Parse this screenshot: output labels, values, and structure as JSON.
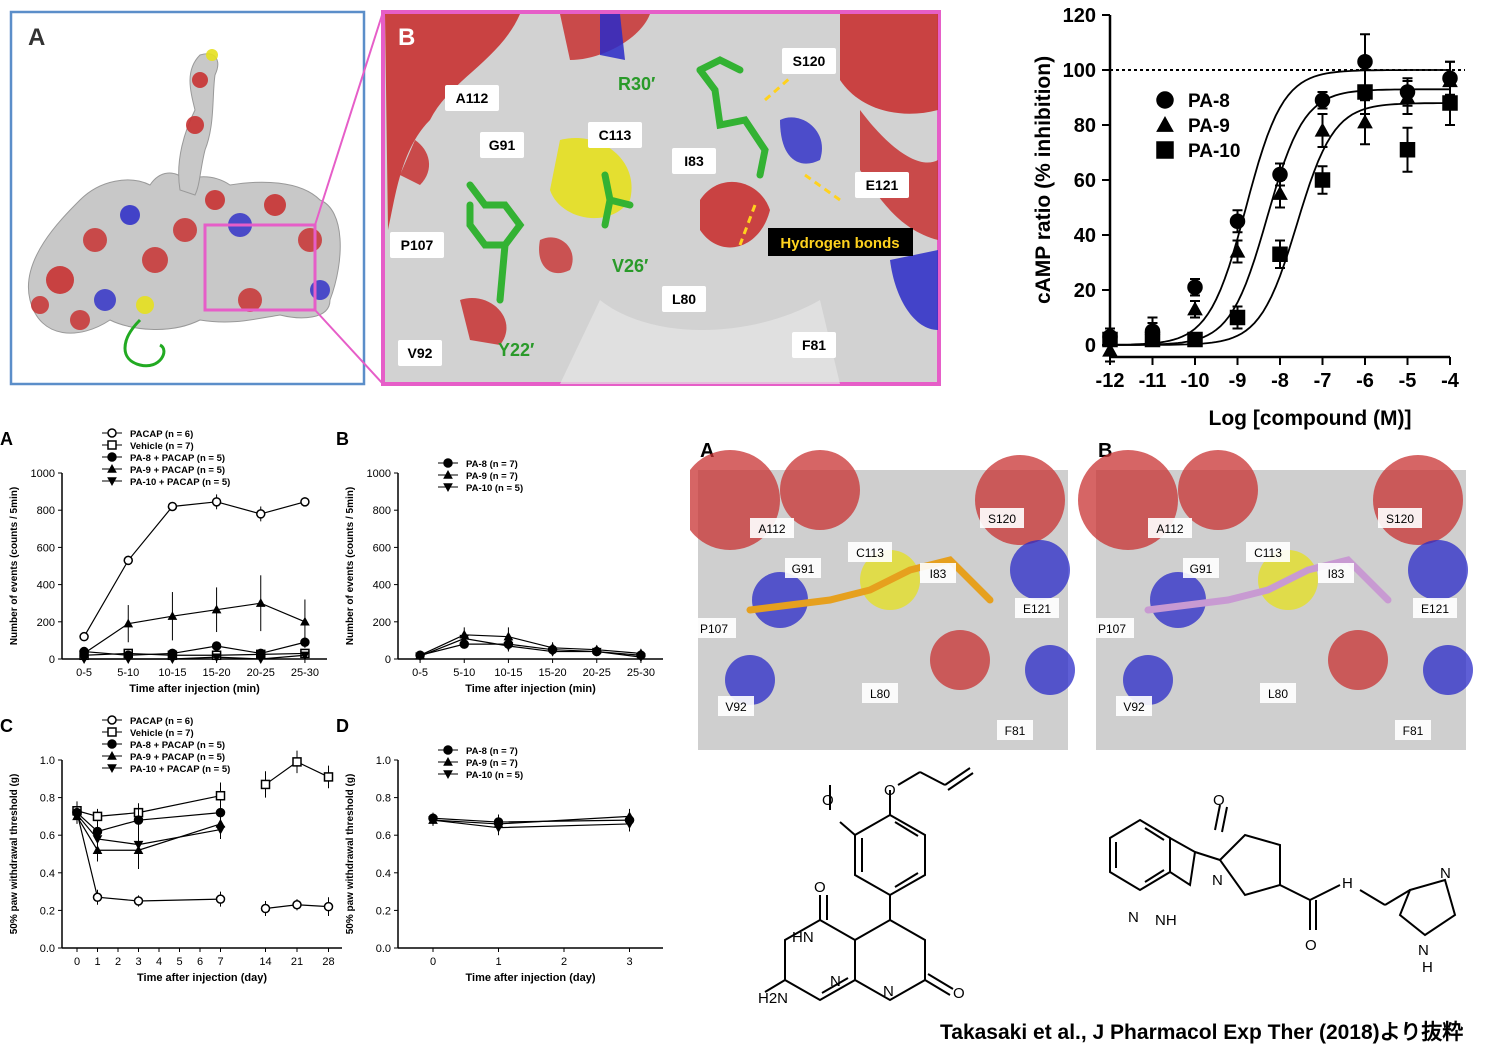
{
  "top_left": {
    "panel_a": {
      "letter": "A"
    },
    "panel_b": {
      "letter": "B",
      "residues": [
        "A112",
        "G91",
        "C113",
        "I83",
        "S120",
        "E121",
        "P107",
        "V92",
        "L80",
        "F81"
      ],
      "ligand_residues": [
        "R30′",
        "V26′",
        "Y22′"
      ],
      "hbond_label": "Hydrogen bonds"
    }
  },
  "camp_chart": {
    "ylabel": "cAMP ratio (% inhibition)",
    "xlabel": "Log [compound (M)]",
    "yticks": [
      "0",
      "20",
      "40",
      "60",
      "80",
      "100",
      "120"
    ],
    "xticks": [
      "-12",
      "-11",
      "-10",
      "-9",
      "-8",
      "-7",
      "-6",
      "-5",
      "-4"
    ],
    "legend": [
      "PA-8",
      "PA-9",
      "PA-10"
    ]
  },
  "panel_behavior_a": {
    "letter": "A",
    "ylabel": "Number of events (counts / 5min)",
    "xlabel": "Time after injection (min)",
    "yticks": [
      "0",
      "200",
      "400",
      "600",
      "800",
      "1000"
    ],
    "xticks": [
      "0-5",
      "5-10",
      "10-15",
      "15-20",
      "20-25",
      "25-30"
    ],
    "legend": [
      "PACAP (n = 6)",
      "Vehicle (n = 7)",
      "PA-8 + PACAP (n = 5)",
      "PA-9 + PACAP (n = 5)",
      "PA-10 + PACAP (n = 5)"
    ]
  },
  "panel_behavior_b": {
    "letter": "B",
    "ylabel": "Number of events (counts / 5min)",
    "xlabel": "Time after injection (min)",
    "yticks": [
      "0",
      "200",
      "400",
      "600",
      "800",
      "1000"
    ],
    "xticks": [
      "0-5",
      "5-10",
      "10-15",
      "15-20",
      "20-25",
      "25-30"
    ],
    "legend": [
      "PA-8 (n = 7)",
      "PA-9 (n = 7)",
      "PA-10 (n = 5)"
    ]
  },
  "panel_behavior_c": {
    "letter": "C",
    "ylabel": "50% paw withdrawal threshold (g)",
    "xlabel": "Time after injection (day)",
    "yticks": [
      "0.0",
      "0.2",
      "0.4",
      "0.6",
      "0.8",
      "1.0"
    ],
    "xticks": [
      "0",
      "1",
      "2",
      "3",
      "4",
      "5",
      "6",
      "7",
      "14",
      "21",
      "28"
    ],
    "legend": [
      "PACAP (n = 6)",
      "Vehicle (n = 7)",
      "PA-8 + PACAP (n = 5)",
      "PA-9 + PACAP (n = 5)",
      "PA-10 + PACAP (n = 5)"
    ]
  },
  "panel_behavior_d": {
    "letter": "D",
    "ylabel": "50% paw withdrawal threshold (g)",
    "xlabel": "Time after injection (day)",
    "yticks": [
      "0.0",
      "0.2",
      "0.4",
      "0.6",
      "0.8",
      "1.0"
    ],
    "xticks": [
      "0",
      "1",
      "2",
      "3"
    ],
    "legend": [
      "PA-8 (n = 7)",
      "PA-9 (n = 7)",
      "PA-10 (n = 5)"
    ]
  },
  "docking": {
    "panel_a": {
      "letter": "A",
      "residues": [
        "A112",
        "S120",
        "G91",
        "C113",
        "I83",
        "P107",
        "E121",
        "V92",
        "L80",
        "F81"
      ]
    },
    "panel_b": {
      "letter": "B",
      "residues": [
        "A112",
        "S120",
        "C113",
        "G91",
        "I83",
        "P107",
        "E121",
        "V92",
        "L80",
        "F81"
      ]
    }
  },
  "structure_labels": {
    "left": [
      "O",
      "O",
      "O",
      "HN",
      "H2N",
      "N",
      "N",
      "H",
      "O"
    ],
    "right": [
      "O",
      "N",
      "N",
      "NH",
      "H",
      "N",
      "O",
      "N",
      "N",
      "H"
    ]
  },
  "citation": "Takasaki et al., J Pharmacol Exp Ther (2018)より抜粋",
  "chart_data": [
    {
      "type": "scatter",
      "id": "camp_inhibition",
      "xlabel": "Log [compound (M)]",
      "ylabel": "cAMP ratio (% inhibition)",
      "xlim": [
        -12,
        -4
      ],
      "ylim": [
        0,
        120
      ],
      "reference_line": 100,
      "x": [
        -12,
        -11,
        -10,
        -9,
        -8,
        -7,
        -6,
        -5,
        -4
      ],
      "series": [
        {
          "name": "PA-8",
          "marker": "circle",
          "values": [
            3,
            5,
            21,
            45,
            62,
            89,
            103,
            92,
            97
          ],
          "err": [
            3,
            3,
            3,
            4,
            4,
            3,
            10,
            5,
            6
          ]
        },
        {
          "name": "PA-9",
          "marker": "triangle",
          "values": [
            -2,
            6,
            13,
            34,
            55,
            78,
            81,
            90,
            96
          ],
          "err": [
            4,
            4,
            3,
            4,
            5,
            6,
            8,
            6,
            7
          ]
        },
        {
          "name": "PA-10",
          "marker": "square",
          "values": [
            2,
            2,
            2,
            10,
            33,
            60,
            92,
            71,
            88
          ],
          "err": [
            2,
            2,
            2,
            4,
            5,
            5,
            8,
            8,
            8
          ]
        }
      ]
    },
    {
      "type": "line",
      "id": "behavior_A",
      "xlabel": "Time after injection (min)",
      "ylabel": "Number of events (counts / 5min)",
      "categories": [
        "0-5",
        "5-10",
        "10-15",
        "15-20",
        "20-25",
        "25-30"
      ],
      "ylim": [
        0,
        1000
      ],
      "series": [
        {
          "name": "PACAP (n = 6)",
          "marker": "open-circle",
          "values": [
            120,
            530,
            820,
            845,
            780,
            845
          ],
          "err": [
            20,
            25,
            15,
            40,
            40,
            25
          ]
        },
        {
          "name": "Vehicle (n = 7)",
          "marker": "open-square",
          "values": [
            20,
            30,
            20,
            20,
            25,
            30
          ],
          "err": [
            10,
            10,
            10,
            10,
            10,
            10
          ]
        },
        {
          "name": "PA-8 + PACAP (n = 5)",
          "marker": "circle",
          "values": [
            40,
            20,
            30,
            70,
            30,
            90
          ],
          "err": [
            20,
            15,
            20,
            20,
            15,
            30
          ]
        },
        {
          "name": "PA-9 + PACAP (n = 5)",
          "marker": "triangle",
          "values": [
            30,
            190,
            230,
            265,
            300,
            200
          ],
          "err": [
            20,
            100,
            130,
            120,
            150,
            120
          ]
        },
        {
          "name": "PA-10 + PACAP (n = 5)",
          "marker": "triangle-down",
          "values": [
            0,
            0,
            0,
            10,
            0,
            20
          ],
          "err": [
            5,
            5,
            5,
            10,
            5,
            10
          ]
        }
      ]
    },
    {
      "type": "line",
      "id": "behavior_B",
      "xlabel": "Time after injection (min)",
      "ylabel": "Number of events (counts / 5min)",
      "categories": [
        "0-5",
        "5-10",
        "10-15",
        "15-20",
        "20-25",
        "25-30"
      ],
      "ylim": [
        0,
        1000
      ],
      "series": [
        {
          "name": "PA-8 (n = 7)",
          "marker": "circle",
          "values": [
            20,
            80,
            80,
            50,
            40,
            20
          ],
          "err": [
            10,
            20,
            30,
            20,
            15,
            10
          ]
        },
        {
          "name": "PA-9 (n = 7)",
          "marker": "triangle",
          "values": [
            20,
            130,
            120,
            60,
            50,
            30
          ],
          "err": [
            10,
            40,
            50,
            30,
            20,
            15
          ]
        },
        {
          "name": "PA-10 (n = 5)",
          "marker": "triangle-down",
          "values": [
            15,
            110,
            70,
            40,
            40,
            10
          ],
          "err": [
            10,
            40,
            30,
            20,
            15,
            10
          ]
        }
      ]
    },
    {
      "type": "line",
      "id": "threshold_C",
      "xlabel": "Time after injection (day)",
      "ylabel": "50% paw withdrawal threshold (g)",
      "ylim": [
        0,
        1.0
      ],
      "series": [
        {
          "name": "PACAP (n = 6)",
          "marker": "open-circle",
          "x": [
            0,
            1,
            3,
            7,
            14,
            21,
            28
          ],
          "values": [
            0.72,
            0.27,
            0.25,
            0.26,
            0.21,
            0.23,
            0.22
          ],
          "err": [
            0.03,
            0.04,
            0.03,
            0.04,
            0.04,
            0.03,
            0.05
          ]
        },
        {
          "name": "Vehicle (n = 7)",
          "marker": "open-square",
          "x": [
            0,
            1,
            3,
            7,
            14,
            21,
            28
          ],
          "values": [
            0.73,
            0.7,
            0.72,
            0.81,
            0.87,
            0.99,
            0.91
          ],
          "err": [
            0.05,
            0.04,
            0.05,
            0.07,
            0.07,
            0.06,
            0.06
          ]
        },
        {
          "name": "PA-8 + PACAP (n = 5)",
          "marker": "circle",
          "x": [
            0,
            1,
            3,
            7
          ],
          "values": [
            0.72,
            0.62,
            0.68,
            0.72
          ],
          "err": [
            0.04,
            0.05,
            0.06,
            0.05
          ]
        },
        {
          "name": "PA-9 + PACAP (n = 5)",
          "marker": "triangle",
          "x": [
            0,
            1,
            3,
            7
          ],
          "values": [
            0.7,
            0.52,
            0.52,
            0.66
          ],
          "err": [
            0.04,
            0.06,
            0.1,
            0.05
          ]
        },
        {
          "name": "PA-10 + PACAP (n = 5)",
          "marker": "triangle-down",
          "x": [
            0,
            1,
            3,
            7
          ],
          "values": [
            0.71,
            0.58,
            0.55,
            0.63
          ],
          "err": [
            0.04,
            0.05,
            0.08,
            0.05
          ]
        }
      ]
    },
    {
      "type": "line",
      "id": "threshold_D",
      "xlabel": "Time after injection (day)",
      "ylabel": "50% paw withdrawal threshold (g)",
      "ylim": [
        0,
        1.0
      ],
      "series": [
        {
          "name": "PA-8 (n = 7)",
          "marker": "circle",
          "x": [
            0,
            1,
            3
          ],
          "values": [
            0.69,
            0.67,
            0.68
          ],
          "err": [
            0.03,
            0.04,
            0.04
          ]
        },
        {
          "name": "PA-9 (n = 7)",
          "marker": "triangle",
          "x": [
            0,
            1,
            3
          ],
          "values": [
            0.68,
            0.66,
            0.7
          ],
          "err": [
            0.03,
            0.04,
            0.04
          ]
        },
        {
          "name": "PA-10 (n = 5)",
          "marker": "triangle-down",
          "x": [
            0,
            1,
            3
          ],
          "values": [
            0.68,
            0.64,
            0.66
          ],
          "err": [
            0.03,
            0.04,
            0.04
          ]
        }
      ]
    }
  ]
}
